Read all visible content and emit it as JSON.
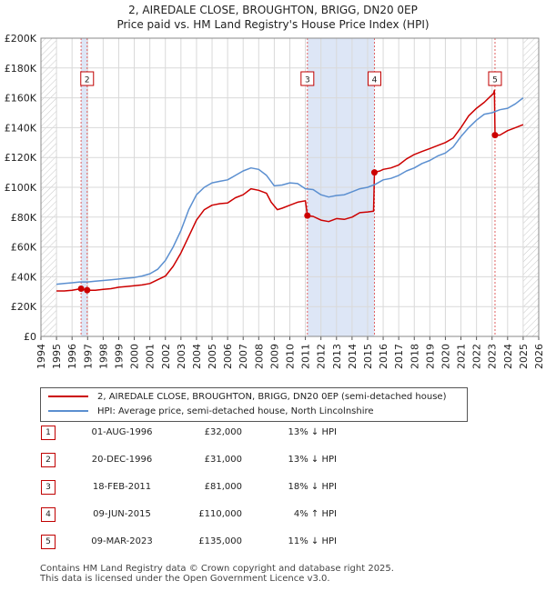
{
  "header": {
    "title_line1": "2, AIREDALE CLOSE, BROUGHTON, BRIGG, DN20 0EP",
    "title_line2": "Price paid vs. HM Land Registry's House Price Index (HPI)"
  },
  "colors": {
    "price_line": "#cc0000",
    "hpi_line": "#5b8fd0",
    "marker_fill": "#cc0000",
    "vline": "#e06060",
    "shade": "#dde6f6",
    "grid": "#d9d9d9",
    "plot_bg": "#ffffff"
  },
  "chart_data": {
    "type": "line",
    "title": "Price paid vs. HM Land Registry's House Price Index (HPI)",
    "xlim": [
      1994,
      2026
    ],
    "ylim": [
      0,
      200000
    ],
    "y_ticks": [
      {
        "value": 0,
        "label": "£0"
      },
      {
        "value": 20000,
        "label": "£20K"
      },
      {
        "value": 40000,
        "label": "£40K"
      },
      {
        "value": 60000,
        "label": "£60K"
      },
      {
        "value": 80000,
        "label": "£80K"
      },
      {
        "value": 100000,
        "label": "£100K"
      },
      {
        "value": 120000,
        "label": "£120K"
      },
      {
        "value": 140000,
        "label": "£140K"
      },
      {
        "value": 160000,
        "label": "£160K"
      },
      {
        "value": 180000,
        "label": "£180K"
      },
      {
        "value": 200000,
        "label": "£200K"
      }
    ],
    "x_ticks": [
      {
        "value": 1994,
        "label": "1994"
      },
      {
        "value": 1995,
        "label": "1995"
      },
      {
        "value": 1996,
        "label": "1996"
      },
      {
        "value": 1997,
        "label": "1997"
      },
      {
        "value": 1998,
        "label": "1998"
      },
      {
        "value": 1999,
        "label": "1999"
      },
      {
        "value": 2000,
        "label": "2000"
      },
      {
        "value": 2001,
        "label": "2001"
      },
      {
        "value": 2002,
        "label": "2002"
      },
      {
        "value": 2003,
        "label": "2003"
      },
      {
        "value": 2004,
        "label": "2004"
      },
      {
        "value": 2005,
        "label": "2005"
      },
      {
        "value": 2006,
        "label": "2006"
      },
      {
        "value": 2007,
        "label": "2007"
      },
      {
        "value": 2008,
        "label": "2008"
      },
      {
        "value": 2009,
        "label": "2009"
      },
      {
        "value": 2010,
        "label": "2010"
      },
      {
        "value": 2011,
        "label": "2011"
      },
      {
        "value": 2012,
        "label": "2012"
      },
      {
        "value": 2013,
        "label": "2013"
      },
      {
        "value": 2014,
        "label": "2014"
      },
      {
        "value": 2015,
        "label": "2015"
      },
      {
        "value": 2016,
        "label": "2016"
      },
      {
        "value": 2017,
        "label": "2017"
      },
      {
        "value": 2018,
        "label": "2018"
      },
      {
        "value": 2019,
        "label": "2019"
      },
      {
        "value": 2020,
        "label": "2020"
      },
      {
        "value": 2021,
        "label": "2021"
      },
      {
        "value": 2022,
        "label": "2022"
      },
      {
        "value": 2023,
        "label": "2023"
      },
      {
        "value": 2024,
        "label": "2024"
      },
      {
        "value": 2025,
        "label": "2025"
      },
      {
        "value": 2026,
        "label": "2026"
      }
    ],
    "hatched_ranges": [
      [
        1994,
        1995.0
      ],
      [
        2025.0,
        2026
      ]
    ],
    "shaded_ranges": [
      [
        1996.58,
        1996.97
      ],
      [
        2011.13,
        2015.44
      ]
    ],
    "series": [
      {
        "name": "2, AIREDALE CLOSE, BROUGHTON, BRIGG, DN20 0EP (semi-detached house)",
        "key": "price",
        "x": [
          1995.0,
          1995.5,
          1996.0,
          1996.58,
          1996.97,
          1997.5,
          1998.0,
          1998.5,
          1999.0,
          1999.5,
          2000.0,
          2000.5,
          2001.0,
          2001.5,
          2002.0,
          2002.5,
          2003.0,
          2003.5,
          2004.0,
          2004.5,
          2005.0,
          2005.5,
          2006.0,
          2006.5,
          2007.0,
          2007.5,
          2008.0,
          2008.5,
          2008.8,
          2009.2,
          2009.5,
          2010.0,
          2010.5,
          2011.0,
          2011.13,
          2011.5,
          2012.0,
          2012.5,
          2013.0,
          2013.5,
          2014.0,
          2014.5,
          2015.0,
          2015.38,
          2015.44,
          2015.8,
          2016.0,
          2016.5,
          2017.0,
          2017.5,
          2018.0,
          2018.5,
          2019.0,
          2019.5,
          2020.0,
          2020.5,
          2021.0,
          2021.5,
          2022.0,
          2022.5,
          2022.8,
          2023.1,
          2023.15,
          2023.19,
          2023.5,
          2024.0,
          2024.5,
          2025.0
        ],
        "y": [
          30500,
          30500,
          31000,
          32000,
          31000,
          31000,
          31500,
          32000,
          33000,
          33500,
          34000,
          34500,
          35500,
          38000,
          40500,
          47000,
          56000,
          67000,
          78000,
          85000,
          88000,
          89000,
          89500,
          93000,
          95000,
          99000,
          98000,
          96000,
          90000,
          85000,
          86000,
          88000,
          90000,
          91000,
          81000,
          80500,
          78000,
          77000,
          79000,
          78500,
          80000,
          83000,
          83500,
          84000,
          110000,
          111000,
          112000,
          113000,
          115000,
          119000,
          122000,
          124000,
          126000,
          128000,
          130000,
          133000,
          140000,
          148000,
          153000,
          157000,
          160000,
          163000,
          165000,
          135000,
          135000,
          138000,
          140000,
          142000
        ]
      },
      {
        "name": "HPI: Average price, semi-detached house, North Lincolnshire",
        "key": "hpi",
        "x": [
          1995.0,
          1995.5,
          1996.0,
          1996.5,
          1997.0,
          1997.5,
          1998.0,
          1998.5,
          1999.0,
          1999.5,
          2000.0,
          2000.5,
          2001.0,
          2001.5,
          2002.0,
          2002.5,
          2003.0,
          2003.5,
          2004.0,
          2004.5,
          2005.0,
          2005.5,
          2006.0,
          2006.5,
          2007.0,
          2007.5,
          2008.0,
          2008.5,
          2009.0,
          2009.5,
          2010.0,
          2010.5,
          2011.0,
          2011.5,
          2012.0,
          2012.5,
          2013.0,
          2013.5,
          2014.0,
          2014.5,
          2015.0,
          2015.5,
          2016.0,
          2016.5,
          2017.0,
          2017.5,
          2018.0,
          2018.5,
          2019.0,
          2019.5,
          2020.0,
          2020.5,
          2021.0,
          2021.5,
          2022.0,
          2022.5,
          2023.0,
          2023.5,
          2024.0,
          2024.5,
          2025.0
        ],
        "y": [
          35000,
          35500,
          36000,
          36500,
          36500,
          37000,
          37500,
          38000,
          38500,
          39000,
          39500,
          40500,
          42000,
          45000,
          51000,
          60000,
          71000,
          85000,
          95000,
          100000,
          103000,
          104000,
          105000,
          108000,
          111000,
          113000,
          112000,
          108000,
          101000,
          101500,
          103000,
          102500,
          99000,
          98500,
          95000,
          93500,
          94500,
          95000,
          97000,
          99000,
          100000,
          102000,
          105000,
          106000,
          108000,
          111000,
          113000,
          116000,
          118000,
          121000,
          123000,
          127000,
          134000,
          140000,
          145000,
          149000,
          150000,
          152000,
          153000,
          156000,
          160000
        ]
      }
    ],
    "markers": [
      {
        "label": "1",
        "x": 1996.58,
        "y": 32000
      },
      {
        "label": "2",
        "x": 1996.97,
        "y": 31000
      },
      {
        "label": "3",
        "x": 2011.13,
        "y": 81000
      },
      {
        "label": "4",
        "x": 2015.44,
        "y": 110000
      },
      {
        "label": "5",
        "x": 2023.19,
        "y": 135000
      }
    ],
    "top_labels": [
      {
        "label": "2",
        "x": 1996.97
      },
      {
        "label": "3",
        "x": 2011.13
      },
      {
        "label": "4",
        "x": 2015.44
      },
      {
        "label": "5",
        "x": 2023.19
      }
    ]
  },
  "legend": {
    "items": [
      {
        "label": "2, AIREDALE CLOSE, BROUGHTON, BRIGG, DN20 0EP (semi-detached house)"
      },
      {
        "label": "HPI: Average price, semi-detached house, North Lincolnshire"
      }
    ]
  },
  "transactions": [
    {
      "num": "1",
      "date": "01-AUG-1996",
      "price": "£32,000",
      "hpi": "13% ↓ HPI"
    },
    {
      "num": "2",
      "date": "20-DEC-1996",
      "price": "£31,000",
      "hpi": "13% ↓ HPI"
    },
    {
      "num": "3",
      "date": "18-FEB-2011",
      "price": "£81,000",
      "hpi": "18% ↓ HPI"
    },
    {
      "num": "4",
      "date": "09-JUN-2015",
      "price": "£110,000",
      "hpi": "4% ↑ HPI"
    },
    {
      "num": "5",
      "date": "09-MAR-2023",
      "price": "£135,000",
      "hpi": "11% ↓ HPI"
    }
  ],
  "footer": {
    "line1": "Contains HM Land Registry data © Crown copyright and database right 2025.",
    "line2": "This data is licensed under the Open Government Licence v3.0."
  }
}
